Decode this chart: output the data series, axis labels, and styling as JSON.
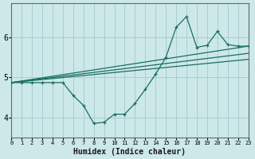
{
  "xlabel": "Humidex (Indice chaleur)",
  "bg_color": "#cce8e8",
  "grid_color": "#aacece",
  "line_color": "#1a6e60",
  "xlim": [
    0,
    23
  ],
  "ylim": [
    3.5,
    6.85
  ],
  "yticks": [
    4,
    5,
    6
  ],
  "xticks": [
    0,
    1,
    2,
    3,
    4,
    5,
    6,
    7,
    8,
    9,
    10,
    11,
    12,
    13,
    14,
    15,
    16,
    17,
    18,
    19,
    20,
    21,
    22,
    23
  ],
  "main_x": [
    0,
    1,
    2,
    3,
    4,
    5,
    6,
    7,
    8,
    9,
    10,
    11,
    12,
    13,
    14,
    15,
    16,
    17,
    18,
    19,
    20,
    21,
    22,
    23
  ],
  "main_y": [
    4.87,
    4.87,
    4.87,
    4.87,
    4.87,
    4.87,
    4.55,
    4.3,
    3.85,
    3.88,
    4.08,
    4.08,
    4.35,
    4.7,
    5.08,
    5.5,
    6.25,
    6.52,
    5.75,
    5.8,
    6.15,
    5.82,
    5.78,
    5.78
  ],
  "trend1_x": [
    0,
    23
  ],
  "trend1_y": [
    4.87,
    5.78
  ],
  "trend2_x": [
    0,
    23
  ],
  "trend2_y": [
    4.87,
    5.6
  ],
  "trend3_x": [
    0,
    23
  ],
  "trend3_y": [
    4.87,
    5.45
  ]
}
